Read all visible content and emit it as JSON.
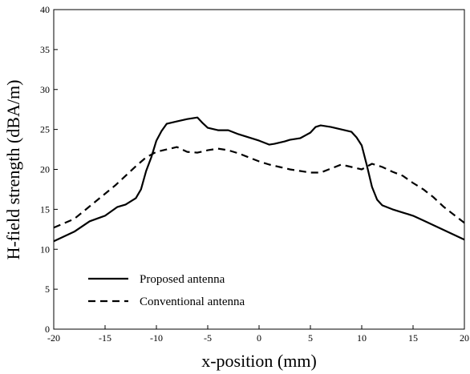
{
  "chart_data": {
    "type": "line",
    "title": "",
    "xlabel": "x-position (mm)",
    "ylabel": "H-field strength (dBA/m)",
    "xlim": [
      -20,
      20
    ],
    "ylim": [
      0,
      40
    ],
    "x_ticks": [
      "-20",
      "-15",
      "-10",
      "-5",
      "0",
      "5",
      "10",
      "15",
      "20"
    ],
    "y_ticks": [
      "0",
      "5",
      "10",
      "15",
      "20",
      "25",
      "30",
      "35",
      "40"
    ],
    "grid": false,
    "legend_position": "lower-left",
    "series": [
      {
        "name": "Proposed antenna",
        "style": "solid",
        "color": "#000000",
        "x": [
          -20,
          -18,
          -16.5,
          -15,
          -13.8,
          -13,
          -12,
          -11.5,
          -11,
          -10.5,
          -10,
          -9.5,
          -9,
          -8,
          -7,
          -6,
          -5.5,
          -5,
          -4,
          -3,
          -2,
          -1,
          0,
          1,
          1.5,
          2.5,
          3,
          4,
          5,
          5.5,
          6,
          7,
          8,
          9,
          9.5,
          10,
          10.5,
          11,
          11.5,
          12,
          13,
          14,
          15,
          16,
          17,
          18,
          19,
          20
        ],
        "y": [
          11,
          12.2,
          13.5,
          14.2,
          15.3,
          15.6,
          16.4,
          17.5,
          19.8,
          21.5,
          23.6,
          24.8,
          25.7,
          26.0,
          26.3,
          26.5,
          25.8,
          25.2,
          24.9,
          24.9,
          24.4,
          24.0,
          23.6,
          23.1,
          23.2,
          23.5,
          23.7,
          23.9,
          24.6,
          25.3,
          25.5,
          25.3,
          25.0,
          24.7,
          24.0,
          23.0,
          20.5,
          17.8,
          16.2,
          15.5,
          15.0,
          14.6,
          14.2,
          13.6,
          13.0,
          12.4,
          11.8,
          11.2
        ]
      },
      {
        "name": "Conventional antenna",
        "style": "dashed",
        "color": "#000000",
        "x": [
          -20,
          -18,
          -16,
          -14,
          -12,
          -11,
          -10,
          -9,
          -8,
          -7,
          -6,
          -5,
          -4,
          -3,
          -2,
          -1,
          0,
          1,
          2,
          3,
          4,
          5,
          6,
          7,
          8,
          9,
          10,
          11,
          12,
          13,
          14,
          15,
          16,
          17,
          18,
          19,
          20
        ],
        "y": [
          12.7,
          13.8,
          15.9,
          18.0,
          20.4,
          21.5,
          22.2,
          22.5,
          22.8,
          22.2,
          22.1,
          22.4,
          22.6,
          22.4,
          22.0,
          21.5,
          21.0,
          20.6,
          20.3,
          20.0,
          19.8,
          19.6,
          19.6,
          20.1,
          20.6,
          20.3,
          20.0,
          20.7,
          20.3,
          19.7,
          19.2,
          18.3,
          17.5,
          16.5,
          15.3,
          14.3,
          13.3
        ]
      }
    ]
  }
}
